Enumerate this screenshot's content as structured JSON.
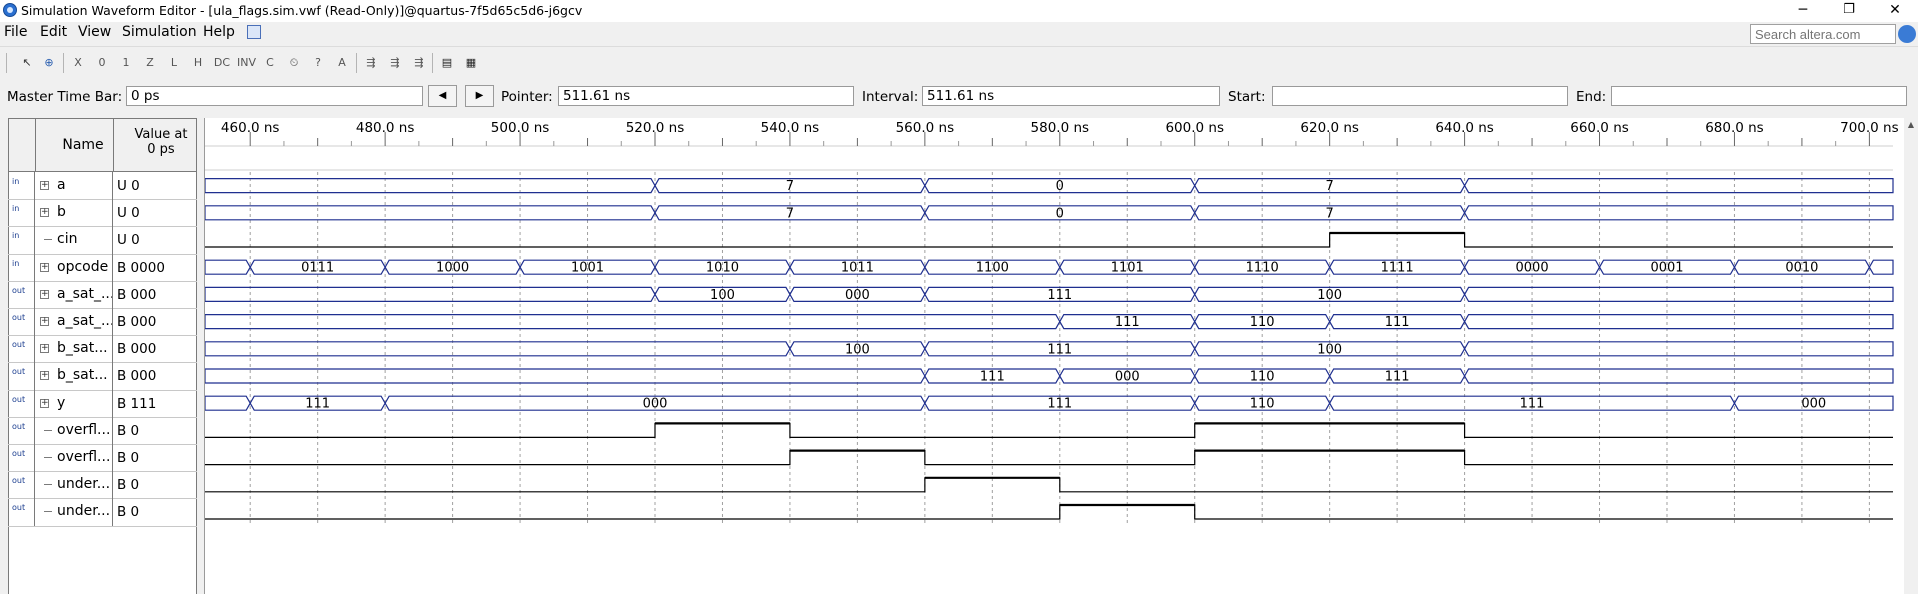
{
  "window": {
    "title": "Simulation Waveform Editor - [ula_flags.sim.vwf (Read-Only)]@quartus-7f5d65c5d6-j6gcv",
    "minimize": "─",
    "maximize": "❐",
    "close": "✕"
  },
  "menubar": {
    "items": [
      "File",
      "Edit",
      "View",
      "Simulation",
      "Help"
    ]
  },
  "search": {
    "placeholder": "Search altera.com"
  },
  "timebar": {
    "master_label": "Master Time Bar:",
    "master_value": "0 ps",
    "prev_label": "◀",
    "next_label": "▶",
    "pointer_label": "Pointer:",
    "pointer_value": "511.61 ns",
    "interval_label": "Interval:",
    "interval_value": "511.61 ns",
    "start_label": "Start:",
    "start_value": "",
    "end_label": "End:",
    "end_value": ""
  },
  "grid": {
    "col_name": "Name",
    "col_value_line1": "Value at",
    "col_value_line2": "0 ps"
  },
  "time_axis": {
    "ticks": [
      "460.0 ns",
      "480.0 ns",
      "500.0 ns",
      "520.0 ns",
      "540.0 ns",
      "560.0 ns",
      "580.0 ns",
      "600.0 ns",
      "620.0 ns",
      "640.0 ns",
      "660.0 ns",
      "680.0 ns",
      "700.0 ns"
    ],
    "tick_values_ns": [
      460,
      480,
      500,
      520,
      540,
      560,
      580,
      600,
      620,
      640,
      660,
      680,
      700
    ],
    "view_start_ns": 453.3,
    "view_end_ns": 703.5
  },
  "signals": [
    {
      "name": "a",
      "value": "U 0",
      "dir": "in",
      "bus": true,
      "type": "bus",
      "segments": [
        {
          "from": 453.3,
          "to": 520,
          "label": ""
        },
        {
          "from": 520,
          "to": 560,
          "label": "7"
        },
        {
          "from": 560,
          "to": 600,
          "label": "0"
        },
        {
          "from": 600,
          "to": 640,
          "label": "7"
        },
        {
          "from": 640,
          "to": 703.5,
          "label": ""
        }
      ]
    },
    {
      "name": "b",
      "value": "U 0",
      "dir": "in",
      "bus": true,
      "type": "bus",
      "segments": [
        {
          "from": 453.3,
          "to": 520,
          "label": ""
        },
        {
          "from": 520,
          "to": 560,
          "label": "7"
        },
        {
          "from": 560,
          "to": 600,
          "label": "0"
        },
        {
          "from": 600,
          "to": 640,
          "label": "7"
        },
        {
          "from": 640,
          "to": 703.5,
          "label": ""
        }
      ]
    },
    {
      "name": "cin",
      "value": "U 0",
      "dir": "in",
      "bus": false,
      "type": "bit",
      "highs": [
        [
          620,
          640
        ]
      ]
    },
    {
      "name": "opcode",
      "value": "B 0000",
      "dir": "in",
      "bus": true,
      "type": "bus",
      "segments": [
        {
          "from": 453.3,
          "to": 460,
          "label": ""
        },
        {
          "from": 460,
          "to": 480,
          "label": "0111"
        },
        {
          "from": 480,
          "to": 500,
          "label": "1000"
        },
        {
          "from": 500,
          "to": 520,
          "label": "1001"
        },
        {
          "from": 520,
          "to": 540,
          "label": "1010"
        },
        {
          "from": 540,
          "to": 560,
          "label": "1011"
        },
        {
          "from": 560,
          "to": 580,
          "label": "1100"
        },
        {
          "from": 580,
          "to": 600,
          "label": "1101"
        },
        {
          "from": 600,
          "to": 620,
          "label": "1110"
        },
        {
          "from": 620,
          "to": 640,
          "label": "1111"
        },
        {
          "from": 640,
          "to": 660,
          "label": "0000"
        },
        {
          "from": 660,
          "to": 680,
          "label": "0001"
        },
        {
          "from": 680,
          "to": 700,
          "label": "0010"
        },
        {
          "from": 700,
          "to": 703.5,
          "label": ""
        }
      ]
    },
    {
      "name": "a_sat_...",
      "value": "B 000",
      "dir": "out",
      "bus": true,
      "type": "bus",
      "segments": [
        {
          "from": 453.3,
          "to": 520,
          "label": ""
        },
        {
          "from": 520,
          "to": 540,
          "label": "100"
        },
        {
          "from": 540,
          "to": 560,
          "label": "000"
        },
        {
          "from": 560,
          "to": 600,
          "label": "111"
        },
        {
          "from": 600,
          "to": 640,
          "label": "100"
        },
        {
          "from": 640,
          "to": 703.5,
          "label": ""
        }
      ]
    },
    {
      "name": "a_sat_...",
      "value": "B 000",
      "dir": "out",
      "bus": true,
      "type": "bus",
      "segments": [
        {
          "from": 453.3,
          "to": 580,
          "label": ""
        },
        {
          "from": 580,
          "to": 600,
          "label": "111"
        },
        {
          "from": 600,
          "to": 620,
          "label": "110"
        },
        {
          "from": 620,
          "to": 640,
          "label": "111"
        },
        {
          "from": 640,
          "to": 703.5,
          "label": ""
        }
      ]
    },
    {
      "name": "b_sat...",
      "value": "B 000",
      "dir": "out",
      "bus": true,
      "type": "bus",
      "segments": [
        {
          "from": 453.3,
          "to": 540,
          "label": ""
        },
        {
          "from": 540,
          "to": 560,
          "label": "100"
        },
        {
          "from": 560,
          "to": 600,
          "label": "111"
        },
        {
          "from": 600,
          "to": 640,
          "label": "100"
        },
        {
          "from": 640,
          "to": 703.5,
          "label": ""
        }
      ]
    },
    {
      "name": "b_sat...",
      "value": "B 000",
      "dir": "out",
      "bus": true,
      "type": "bus",
      "segments": [
        {
          "from": 453.3,
          "to": 560,
          "label": ""
        },
        {
          "from": 560,
          "to": 580,
          "label": "111"
        },
        {
          "from": 580,
          "to": 600,
          "label": "000"
        },
        {
          "from": 600,
          "to": 620,
          "label": "110"
        },
        {
          "from": 620,
          "to": 640,
          "label": "111"
        },
        {
          "from": 640,
          "to": 703.5,
          "label": ""
        }
      ]
    },
    {
      "name": "y",
      "value": "B 111",
      "dir": "out",
      "bus": true,
      "type": "bus",
      "segments": [
        {
          "from": 453.3,
          "to": 460,
          "label": ""
        },
        {
          "from": 460,
          "to": 480,
          "label": "111"
        },
        {
          "from": 480,
          "to": 560,
          "label": "000"
        },
        {
          "from": 560,
          "to": 600,
          "label": "111"
        },
        {
          "from": 600,
          "to": 620,
          "label": "110"
        },
        {
          "from": 620,
          "to": 680,
          "label": "111"
        },
        {
          "from": 680,
          "to": 703.5,
          "label": "000"
        }
      ]
    },
    {
      "name": "overfl...",
      "value": "B 0",
      "dir": "out",
      "bus": false,
      "type": "bit",
      "highs": [
        [
          520,
          540
        ],
        [
          600,
          640
        ]
      ]
    },
    {
      "name": "overfl...",
      "value": "B 0",
      "dir": "out",
      "bus": false,
      "type": "bit",
      "highs": [
        [
          540,
          560
        ],
        [
          600,
          640
        ]
      ]
    },
    {
      "name": "under...",
      "value": "B 0",
      "dir": "out",
      "bus": false,
      "type": "bit",
      "highs": [
        [
          560,
          580
        ]
      ]
    },
    {
      "name": "under...",
      "value": "B 0",
      "dir": "out",
      "bus": false,
      "type": "bit",
      "highs": [
        [
          580,
          600
        ]
      ]
    }
  ],
  "colors": {
    "bus_line": "#1f2f8f",
    "bit_line": "#000000",
    "grid": "#a0a0a0"
  }
}
